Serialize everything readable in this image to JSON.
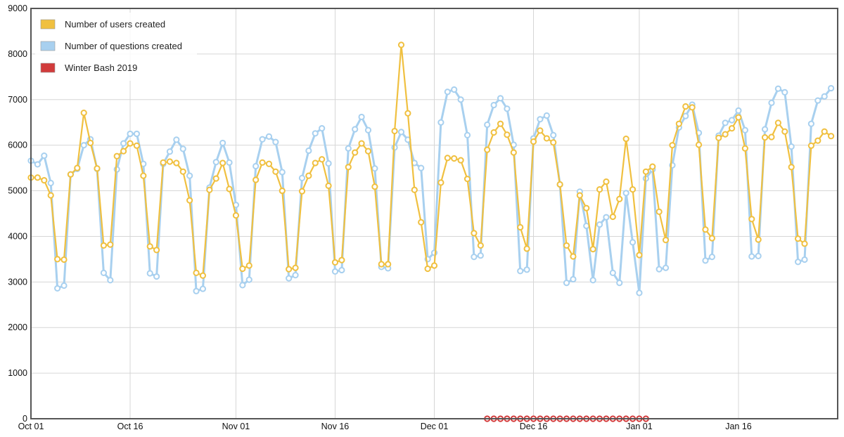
{
  "chart_data": {
    "type": "line",
    "xlim": [
      "2019-10-01",
      "2020-01-31"
    ],
    "ylim": [
      0,
      9000
    ],
    "y_ticks": [
      0,
      1000,
      2000,
      3000,
      4000,
      5000,
      6000,
      7000,
      8000,
      9000
    ],
    "x_ticks": [
      {
        "date": "2019-10-01",
        "label": "Oct 01"
      },
      {
        "date": "2019-10-16",
        "label": "Oct 16"
      },
      {
        "date": "2019-11-01",
        "label": "Nov 01"
      },
      {
        "date": "2019-11-16",
        "label": "Nov 16"
      },
      {
        "date": "2019-12-01",
        "label": "Dec 01"
      },
      {
        "date": "2019-12-16",
        "label": "Dec 16"
      },
      {
        "date": "2020-01-01",
        "label": "Jan 01"
      },
      {
        "date": "2020-01-16",
        "label": "Jan 16"
      }
    ],
    "grid": true,
    "legend_position": "top-left",
    "series": [
      {
        "name": "Number of users created",
        "color": "#f0c040",
        "start_date": "2019-10-01",
        "values": [
          5290,
          5290,
          5230,
          4900,
          3500,
          3490,
          5360,
          5500,
          6710,
          6050,
          5490,
          3800,
          3820,
          5760,
          5870,
          6040,
          5990,
          5330,
          3780,
          3700,
          5620,
          5640,
          5610,
          5420,
          4790,
          3200,
          3140,
          5020,
          5270,
          5610,
          5040,
          4460,
          3290,
          3360,
          5240,
          5620,
          5590,
          5420,
          5000,
          3280,
          3310,
          4990,
          5330,
          5610,
          5690,
          5110,
          3430,
          3480,
          5520,
          5840,
          6040,
          5870,
          5090,
          3390,
          3390,
          6310,
          8200,
          6700,
          5020,
          4310,
          3290,
          3360,
          5180,
          5720,
          5710,
          5670,
          5260,
          4070,
          3800,
          5900,
          6280,
          6470,
          6230,
          5840,
          4200,
          3730,
          6080,
          6320,
          6150,
          6060,
          5140,
          3800,
          3560,
          4900,
          4620,
          3720,
          5030,
          5200,
          4430,
          4820,
          6140,
          5030,
          3590,
          5420,
          5530,
          4540,
          3920,
          6000,
          6470,
          6850,
          6830,
          6010,
          4150,
          3960,
          6160,
          6240,
          6370,
          6610,
          5930,
          4380,
          3930,
          6170,
          6180,
          6490,
          6300,
          5520,
          3950,
          3840,
          5990,
          6100,
          6300,
          6200
        ],
        "extra_points": []
      },
      {
        "name": "Number of questions created",
        "color": "#a8d0ef",
        "start_date": "2019-10-01",
        "values": [
          5660,
          5580,
          5770,
          5170,
          2860,
          2920,
          5360,
          5480,
          6000,
          6130,
          5480,
          3200,
          3040,
          5470,
          6040,
          6250,
          6250,
          5590,
          3190,
          3120,
          5590,
          5860,
          6120,
          5920,
          5330,
          2800,
          2850,
          5070,
          5630,
          6050,
          5620,
          4690,
          2930,
          3050,
          5540,
          6130,
          6190,
          6070,
          5410,
          3080,
          3150,
          5280,
          5880,
          6260,
          6370,
          5600,
          3230,
          3260,
          5930,
          6350,
          6620,
          6330,
          5490,
          3330,
          3300,
          5950,
          6290,
          6120,
          5610,
          5500,
          3500,
          3640,
          6500,
          7170,
          7220,
          7000,
          6220,
          3550,
          3580,
          6450,
          6880,
          7030,
          6800,
          6010,
          3240,
          3270,
          6150,
          6570,
          6650,
          6220,
          5140,
          2980,
          3060,
          4980,
          4230,
          3040,
          4260,
          4420,
          3200,
          2980,
          4950,
          3870,
          2760,
          5270,
          5470,
          3280,
          3310,
          5560,
          6390,
          6640,
          6890,
          6270,
          3470,
          3550,
          6210,
          6490,
          6550,
          6760,
          6330,
          3560,
          3570,
          6350,
          6930,
          7240,
          7160,
          5970,
          3440,
          3490,
          6470,
          6980,
          7070,
          7250
        ],
        "extra_points": []
      },
      {
        "name": "Winter Bash 2019",
        "color": "#d13b3b",
        "start_date": "2019-12-09",
        "values": [
          0,
          0,
          0,
          0,
          0,
          0,
          0,
          0,
          0,
          0,
          0,
          0,
          0,
          0,
          0,
          0,
          0,
          0,
          0,
          0,
          0,
          0,
          0,
          0,
          0
        ]
      }
    ]
  }
}
